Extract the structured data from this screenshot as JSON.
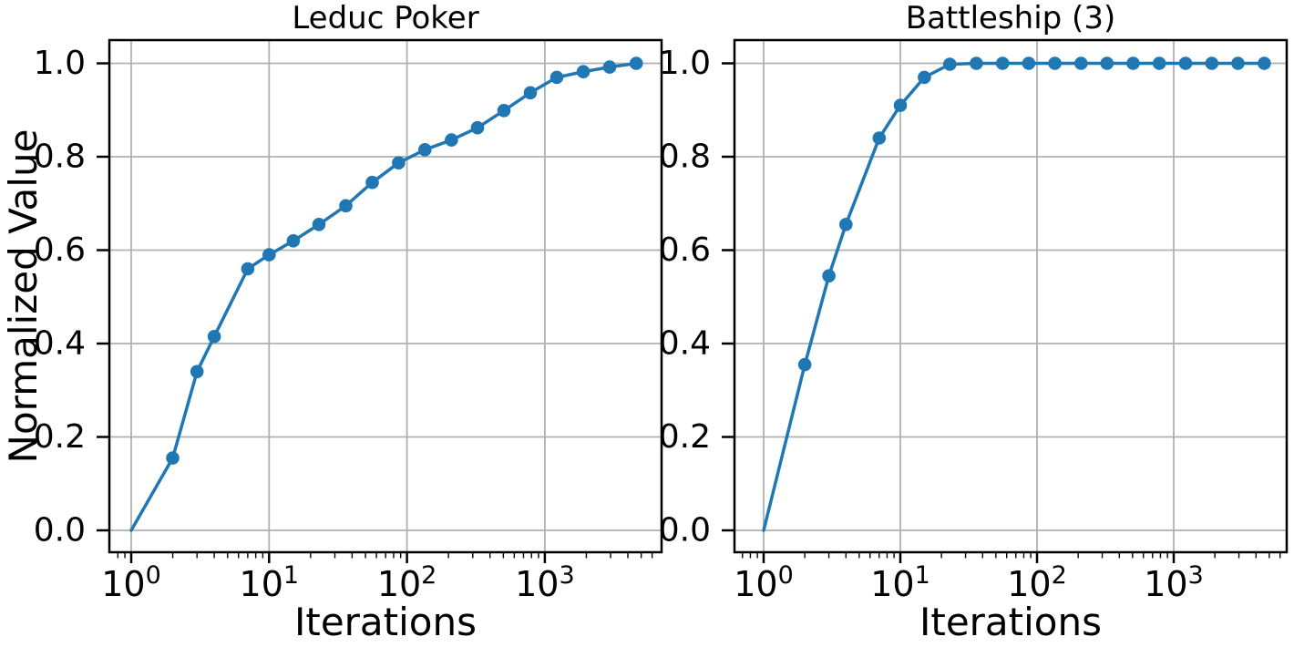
{
  "figure": {
    "background": "#ffffff",
    "series_color": "#1f77b4",
    "grid_color": "#b0b0b0",
    "spine_color": "#000000",
    "text_color": "#000000"
  },
  "chart_data": [
    {
      "type": "line",
      "title": "Leduc Poker",
      "xlabel": "Iterations",
      "ylabel": "Normalized Value",
      "x_scale": "log",
      "grid": true,
      "legend_position": "none",
      "x_ticks": [
        1,
        10,
        100,
        1000
      ],
      "y_ticks": [
        0.0,
        0.2,
        0.4,
        0.6,
        0.8,
        1.0
      ],
      "ylim": [
        0,
        1
      ],
      "xlim": [
        1,
        4600
      ],
      "series": [
        {
          "name": "normalized-value",
          "marker": "circle",
          "first_marker_hidden": true,
          "x": [
            1,
            2,
            3,
            4,
            7,
            10,
            15,
            23,
            36,
            56,
            87,
            135,
            210,
            325,
            505,
            785,
            1220,
            1900,
            2950,
            4600
          ],
          "y": [
            0.0,
            0.155,
            0.34,
            0.415,
            0.56,
            0.59,
            0.62,
            0.655,
            0.695,
            0.745,
            0.787,
            0.815,
            0.836,
            0.862,
            0.899,
            0.937,
            0.97,
            0.982,
            0.992,
            1.0
          ]
        }
      ]
    },
    {
      "type": "line",
      "title": "Battleship (3)",
      "xlabel": "Iterations",
      "ylabel": "",
      "x_scale": "log",
      "grid": true,
      "legend_position": "none",
      "x_ticks": [
        1,
        10,
        100,
        1000
      ],
      "y_ticks": [
        0.0,
        0.2,
        0.4,
        0.6,
        0.8,
        1.0
      ],
      "ylim": [
        0,
        1
      ],
      "xlim": [
        1,
        4600
      ],
      "series": [
        {
          "name": "normalized-value",
          "marker": "circle",
          "first_marker_hidden": true,
          "x": [
            1,
            2,
            3,
            4,
            7,
            10,
            15,
            23,
            36,
            56,
            87,
            135,
            210,
            325,
            505,
            785,
            1220,
            1900,
            2950,
            4600
          ],
          "y": [
            0.0,
            0.355,
            0.545,
            0.655,
            0.84,
            0.91,
            0.97,
            0.998,
            1.0,
            1.0,
            1.0,
            1.0,
            1.0,
            1.0,
            1.0,
            1.0,
            1.0,
            1.0,
            1.0,
            1.0
          ]
        }
      ]
    }
  ]
}
